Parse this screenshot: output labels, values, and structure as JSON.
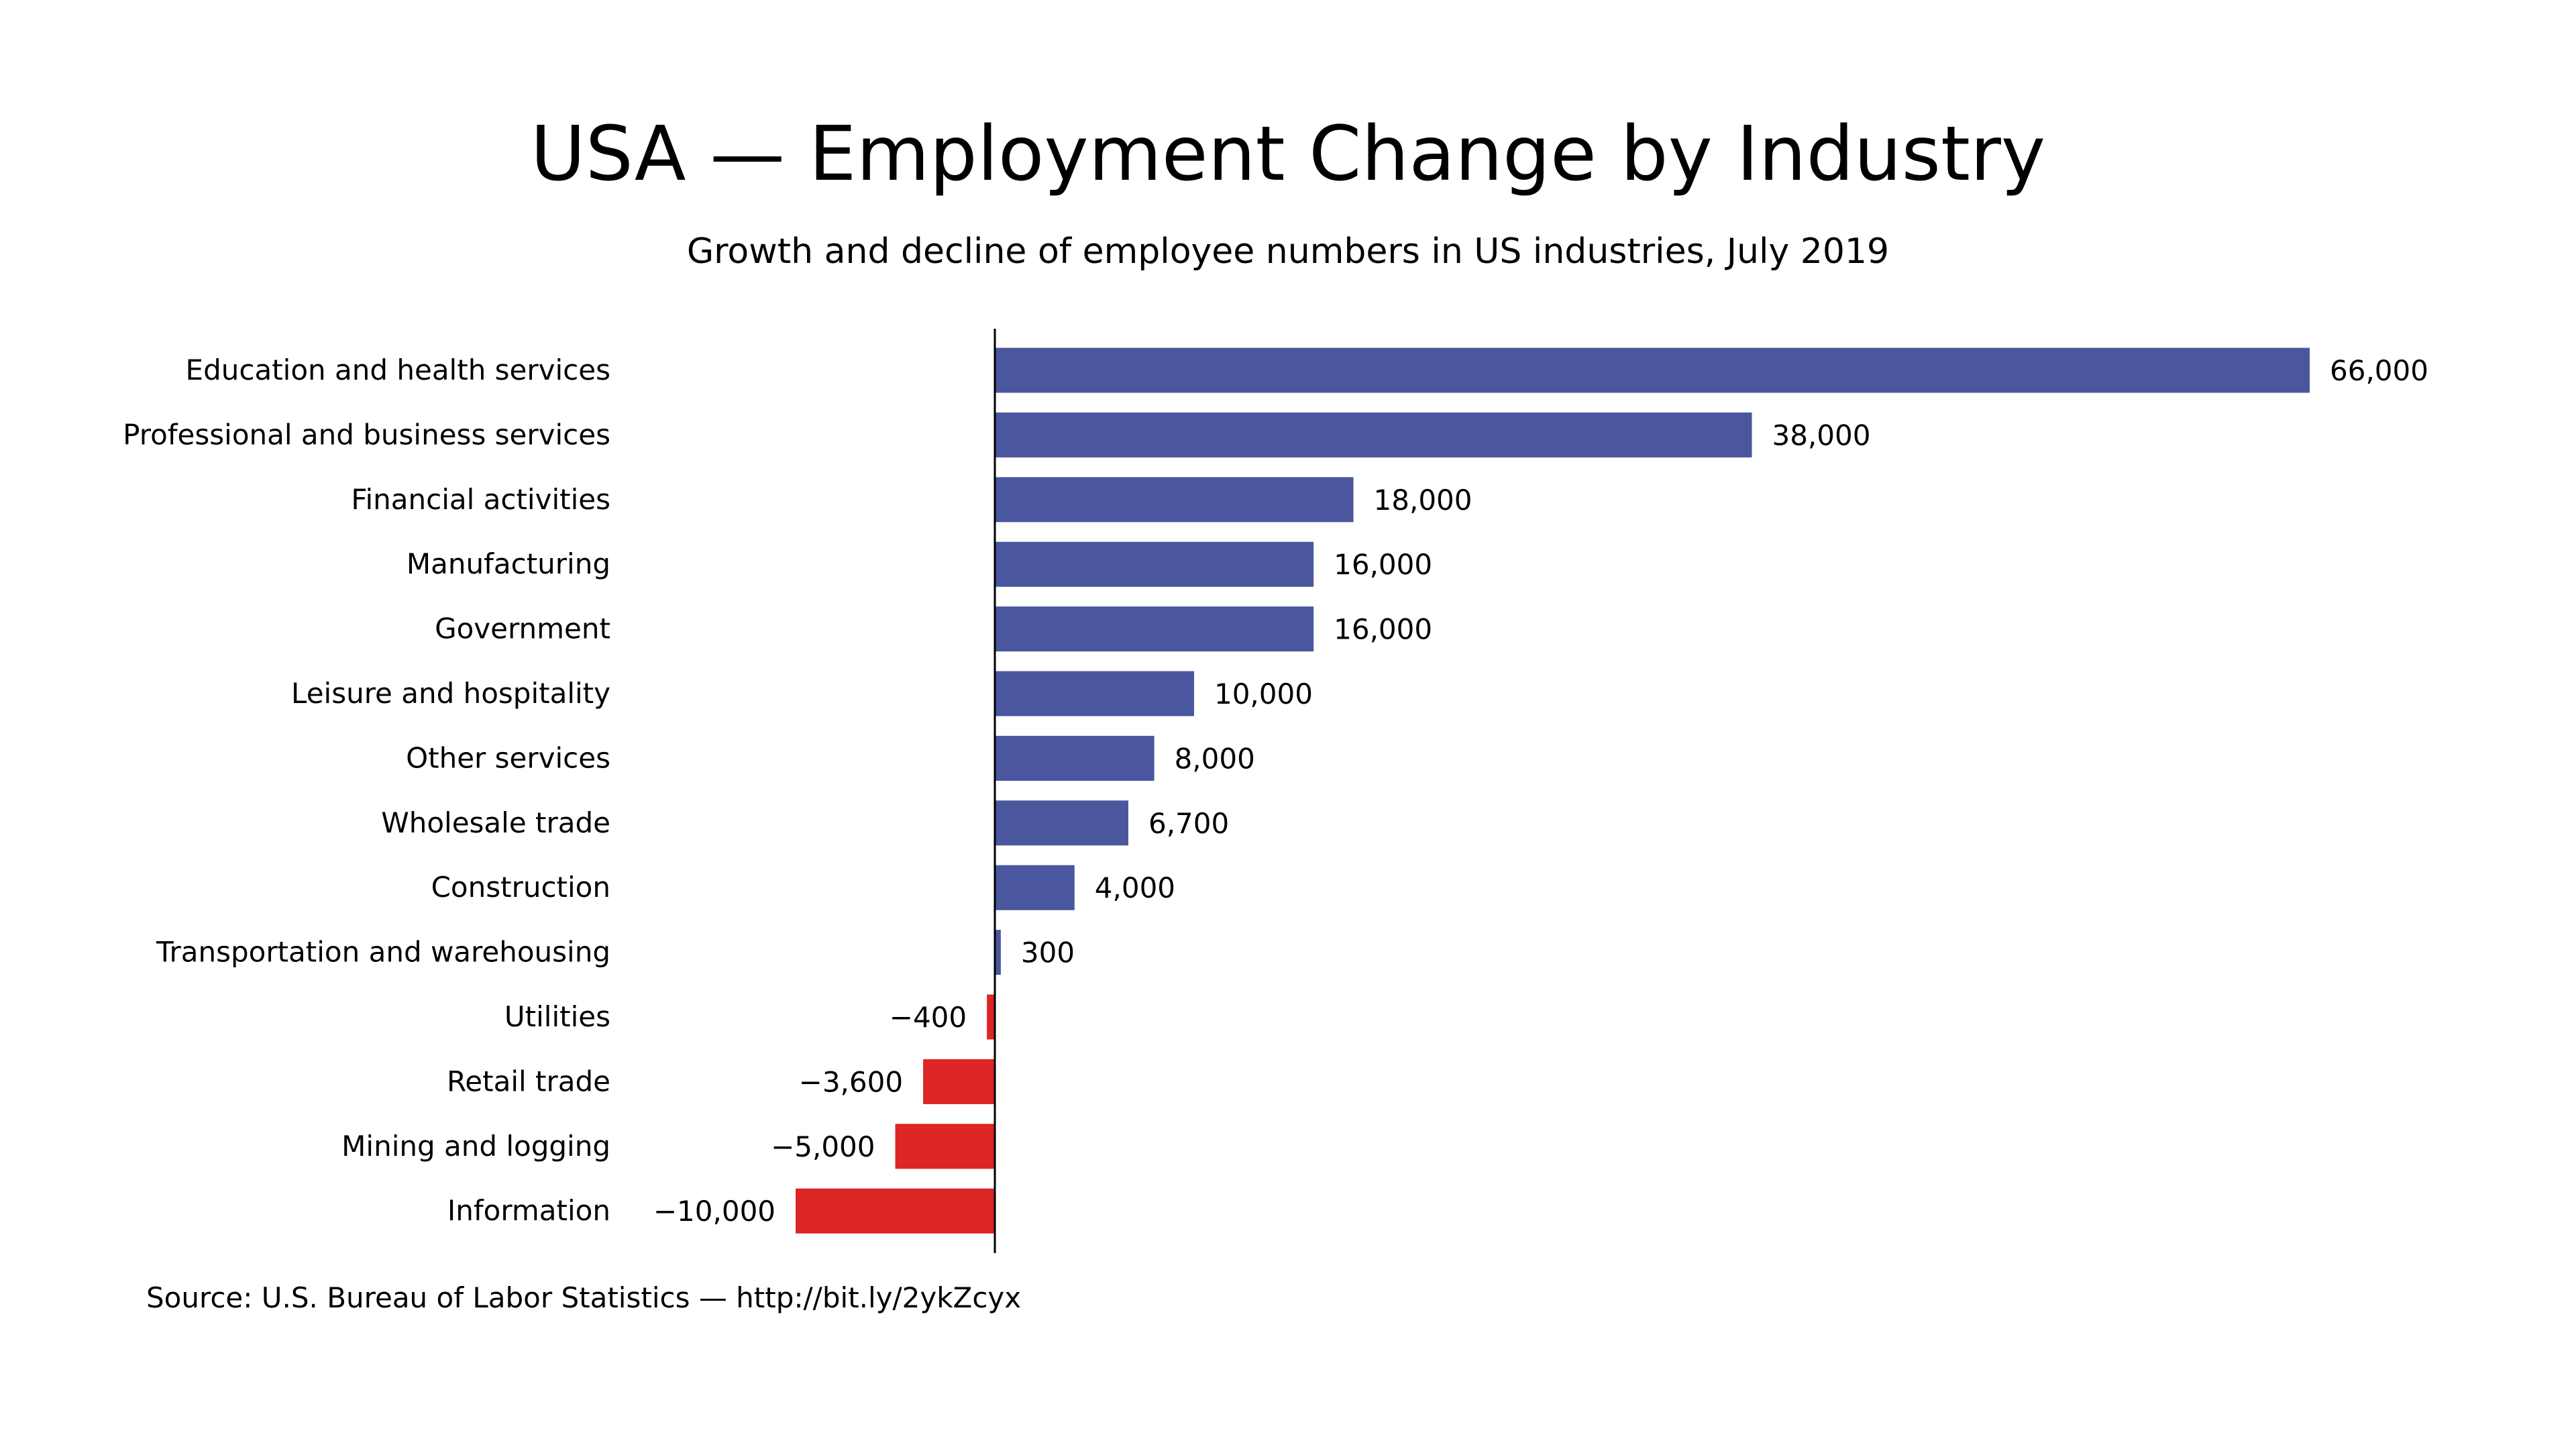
{
  "chart_data": {
    "type": "bar",
    "orientation": "horizontal",
    "title": "USA — Employment Change by Industry",
    "subtitle": "Growth and decline of employee numbers in US industries, July 2019",
    "source": "Source: U.S. Bureau of Labor Statistics — http://bit.ly/2ykZcyx",
    "categories": [
      "Education and health services",
      "Professional and business services",
      "Financial activities",
      "Manufacturing",
      "Government",
      "Leisure and hospitality",
      "Other services",
      "Wholesale trade",
      "Construction",
      "Transportation and warehousing",
      "Utilities",
      "Retail trade",
      "Mining and logging",
      "Information"
    ],
    "values": [
      66000,
      38000,
      18000,
      16000,
      16000,
      10000,
      8000,
      6700,
      4000,
      300,
      -400,
      -3600,
      -5000,
      -10000
    ],
    "value_labels": [
      "66,000",
      "38,000",
      "18,000",
      "16,000",
      "16,000",
      "10,000",
      "8,000",
      "6,700",
      "4,000",
      "300",
      "−400",
      "−3,600",
      "−5,000",
      "−10,000"
    ],
    "xlim": [
      -10000,
      66000
    ],
    "grid": false,
    "colors": {
      "positive": "#4a569d",
      "negative": "#dd2525"
    }
  }
}
